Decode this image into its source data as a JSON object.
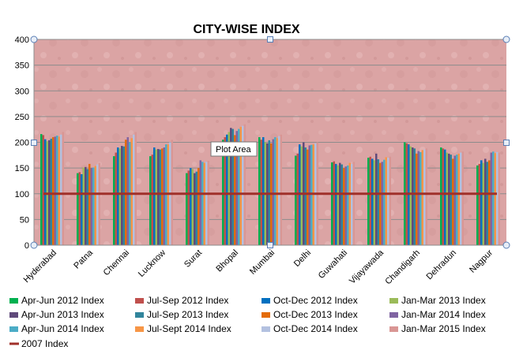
{
  "chart_data": {
    "type": "bar",
    "title": "CITY-WISE INDEX",
    "tooltip": "Plot Area",
    "ylim": [
      0,
      400
    ],
    "yticks": [
      0,
      50,
      100,
      150,
      200,
      250,
      300,
      350,
      400
    ],
    "grid": true,
    "legend_position": "bottom",
    "categories": [
      "Hyderabad",
      "Patna",
      "Chennai",
      "Lucknow",
      "Surat",
      "Bhopal",
      "Mumbai",
      "Delhi",
      "Guwahati",
      "Vijayawada",
      "Chandigarh",
      "Dehradun",
      "Nagpur"
    ],
    "series": [
      {
        "name": "Apr-Jun 2012 Index",
        "color": "#00B050",
        "values": [
          216,
          140,
          173,
          173,
          140,
          205,
          210,
          174,
          161,
          170,
          200,
          190,
          155
        ]
      },
      {
        "name": "Jul-Sep 2012 Index",
        "color": "#C0504D",
        "values": [
          214,
          142,
          180,
          176,
          145,
          210,
          205,
          178,
          163,
          172,
          198,
          188,
          158
        ]
      },
      {
        "name": "Oct-Dec 2012 Index",
        "color": "#0070C0",
        "values": [
          206,
          138,
          190,
          190,
          150,
          215,
          210,
          196,
          158,
          168,
          196,
          186,
          165
        ]
      },
      {
        "name": "Jan-Mar 2013 Index",
        "color": "#9BBB59",
        "values": [
          202,
          151,
          188,
          186,
          148,
          220,
          200,
          192,
          155,
          165,
          192,
          180,
          160
        ]
      },
      {
        "name": "Apr-Jun 2013 Index",
        "color": "#604A7B",
        "values": [
          204,
          152,
          193,
          187,
          140,
          228,
          198,
          200,
          160,
          178,
          190,
          178,
          168
        ]
      },
      {
        "name": "Jul-Sep 2013 Index",
        "color": "#31859C",
        "values": [
          207,
          148,
          192,
          186,
          143,
          226,
          204,
          190,
          157,
          167,
          188,
          176,
          162
        ]
      },
      {
        "name": "Oct-Dec 2013 Index",
        "color": "#E46C0A",
        "values": [
          210,
          158,
          205,
          188,
          150,
          214,
          198,
          186,
          150,
          160,
          178,
          168,
          165
        ]
      },
      {
        "name": "Jan-Mar 2014 Index",
        "color": "#8064A2",
        "values": [
          211,
          150,
          210,
          190,
          165,
          222,
          206,
          194,
          153,
          162,
          183,
          174,
          180
        ]
      },
      {
        "name": "Apr-Jun 2014 Index",
        "color": "#4BACC6",
        "values": [
          213,
          151,
          200,
          196,
          162,
          226,
          210,
          195,
          155,
          166,
          181,
          176,
          182
        ]
      },
      {
        "name": "Jul-Sept 2014 Index",
        "color": "#F79646",
        "values": [
          211,
          154,
          208,
          196,
          160,
          230,
          208,
          196,
          160,
          171,
          185,
          178,
          179
        ]
      },
      {
        "name": "Oct-Dec 2014 Index",
        "color": "#B3C1E0",
        "values": [
          215,
          157,
          215,
          200,
          162,
          232,
          212,
          198,
          158,
          170,
          186,
          180,
          181
        ]
      },
      {
        "name": "Jan-Mar 2015 Index",
        "color": "#D99694",
        "values": [
          220,
          160,
          220,
          205,
          164,
          235,
          215,
          200,
          162,
          172,
          188,
          182,
          180
        ]
      }
    ],
    "reference_line": {
      "name": "2007 Index",
      "value": 100,
      "color": "#A0302A"
    }
  }
}
